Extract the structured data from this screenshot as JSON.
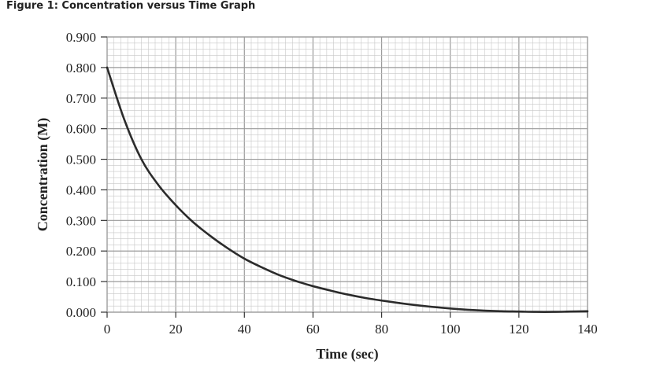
{
  "figure_title": "Figure 1: Concentration versus Time Graph",
  "colors": {
    "curve": "#2b2b2b",
    "major_grid": "#9a9a9a",
    "minor_grid": "#c8c8c8",
    "text": "#222222"
  },
  "chart_data": {
    "type": "line",
    "title": "Figure 1: Concentration versus Time Graph",
    "xlabel": "Time (sec)",
    "ylabel": "Concentration (M)",
    "xlim": [
      0,
      140
    ],
    "ylim": [
      0,
      0.9
    ],
    "x_tick_labels": [
      "0",
      "20",
      "40",
      "60",
      "80",
      "100",
      "120",
      "140"
    ],
    "y_tick_labels": [
      "0.000",
      "0.100",
      "0.200",
      "0.300",
      "0.400",
      "0.500",
      "0.600",
      "0.700",
      "0.800",
      "0.900"
    ],
    "grid": true,
    "legend": "none",
    "series": [
      {
        "x": [
          0,
          5,
          10,
          15,
          20,
          25,
          30,
          35,
          40,
          45,
          50,
          55,
          60,
          65,
          70,
          75,
          80,
          85,
          90,
          95,
          100,
          105,
          110,
          115,
          120,
          125,
          130,
          135,
          140
        ],
        "values": [
          0.8,
          0.63,
          0.5,
          0.415,
          0.35,
          0.295,
          0.25,
          0.21,
          0.175,
          0.147,
          0.122,
          0.102,
          0.085,
          0.071,
          0.058,
          0.047,
          0.038,
          0.03,
          0.023,
          0.017,
          0.012,
          0.008,
          0.005,
          0.003,
          0.002,
          0.001,
          0.001,
          0.002,
          0.003
        ]
      }
    ]
  }
}
